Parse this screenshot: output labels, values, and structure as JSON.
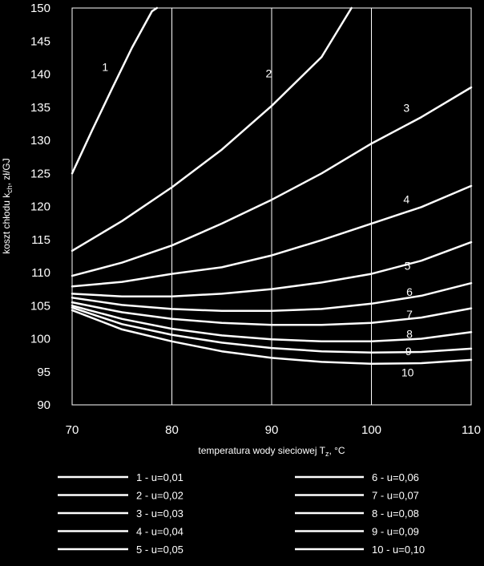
{
  "chart_data": {
    "type": "line",
    "xlabel": "temperatura wody sieciowej T",
    "xlabel_sub": "z",
    "xlabel_unit": ", °C",
    "ylabel": "koszt chłodu k",
    "ylabel_sub": "ch",
    "ylabel_unit": ", zł/GJ",
    "xlim": [
      70,
      110
    ],
    "ylim": [
      90,
      150
    ],
    "x_ticks": [
      "70",
      "80",
      "90",
      "100",
      "110"
    ],
    "y_ticks": [
      "90",
      "95",
      "100",
      "105",
      "110",
      "115",
      "120",
      "125",
      "130",
      "135",
      "140",
      "145",
      "150"
    ],
    "grid": "vertical",
    "legend_position": "bottom",
    "x": [
      70,
      75,
      80,
      85,
      90,
      95,
      100,
      105,
      110
    ],
    "series": [
      {
        "name": "1 - u=0,01",
        "label": "1",
        "label_x": 73,
        "label_y": 140.5,
        "x": [
          70,
          72,
          74,
          76,
          78,
          78.5
        ],
        "values": [
          125,
          131.5,
          137.8,
          144,
          149.5,
          150
        ]
      },
      {
        "name": "2 - u=0,02",
        "label": "2",
        "label_x": 89.4,
        "label_y": 139.5,
        "x": [
          70,
          75,
          80,
          85,
          90,
          95,
          98
        ],
        "values": [
          113.3,
          117.8,
          122.9,
          128.6,
          135.2,
          142.6,
          150
        ]
      },
      {
        "name": "3 - u=0,03",
        "label": "3",
        "label_x": 103.2,
        "label_y": 134.3,
        "x": [
          70,
          75,
          80,
          85,
          90,
          95,
          100,
          105,
          110
        ],
        "values": [
          109.5,
          111.5,
          114.1,
          117.4,
          121,
          125,
          129.5,
          133.5,
          138
        ]
      },
      {
        "name": "4 - u=0,04",
        "label": "4",
        "label_x": 103.2,
        "label_y": 120.5,
        "x": [
          70,
          75,
          80,
          85,
          90,
          95,
          100,
          105,
          110
        ],
        "values": [
          107.9,
          108.6,
          109.8,
          110.8,
          112.6,
          114.9,
          117.4,
          119.9,
          123.1
        ]
      },
      {
        "name": "5 - u=0,05",
        "label": "5",
        "label_x": 103.3,
        "label_y": 110.4,
        "x": [
          70,
          75,
          80,
          85,
          90,
          95,
          100,
          105,
          110
        ],
        "values": [
          106.8,
          106.4,
          106.4,
          106.8,
          107.5,
          108.5,
          109.8,
          111.8,
          114.6
        ]
      },
      {
        "name": "6 - u=0,06",
        "label": "6",
        "label_x": 103.5,
        "label_y": 106.5,
        "x": [
          70,
          75,
          80,
          85,
          90,
          95,
          100,
          105,
          110
        ],
        "values": [
          106.2,
          105.1,
          104.5,
          104.2,
          104.2,
          104.5,
          105.3,
          106.5,
          108.4
        ]
      },
      {
        "name": "7 - u=0,07",
        "label": "7",
        "label_x": 103.5,
        "label_y": 103.1,
        "x": [
          70,
          75,
          80,
          85,
          90,
          95,
          100,
          105,
          110
        ],
        "values": [
          105.5,
          104,
          103,
          102.4,
          102.1,
          102.1,
          102.4,
          103.2,
          104.6
        ]
      },
      {
        "name": "8 - u=0,08",
        "label": "8",
        "label_x": 103.5,
        "label_y": 100.1,
        "x": [
          70,
          75,
          80,
          85,
          90,
          95,
          100,
          105,
          110
        ],
        "values": [
          105,
          103,
          101.5,
          100.5,
          99.9,
          99.6,
          99.6,
          100,
          101
        ]
      },
      {
        "name": "9 - u=0,09",
        "label": "9",
        "label_x": 103.4,
        "label_y": 97.5,
        "x": [
          70,
          75,
          80,
          85,
          90,
          95,
          100,
          105,
          110
        ],
        "values": [
          104.7,
          102.2,
          100.6,
          99.4,
          98.6,
          98.1,
          97.9,
          98,
          98.5
        ]
      },
      {
        "name": "10 - u=0,10",
        "label": "10",
        "label_x": 103,
        "label_y": 94.3,
        "x": [
          70,
          75,
          80,
          85,
          90,
          95,
          100,
          105,
          110
        ],
        "values": [
          104.3,
          101.4,
          99.6,
          98.1,
          97.1,
          96.5,
          96.2,
          96.3,
          96.8
        ]
      }
    ]
  },
  "colors": {
    "background": "#000000",
    "plot_background": "#000000",
    "line": "#ffffff",
    "grid": "#ffffff",
    "text": "#ffffff"
  }
}
